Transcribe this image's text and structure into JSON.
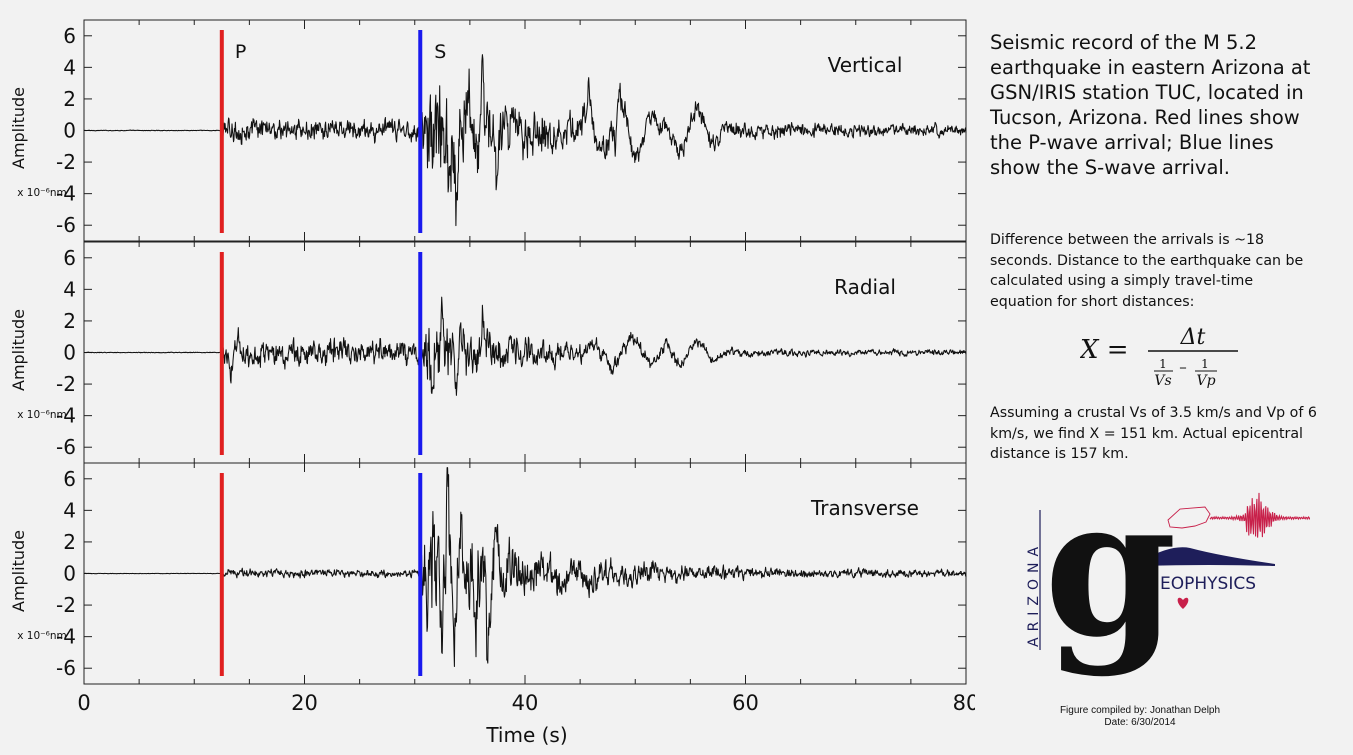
{
  "chart_data": {
    "type": "line",
    "xlabel": "Time (s)",
    "xlim": [
      0,
      80
    ],
    "x_ticks": [
      0,
      20,
      40,
      60,
      80
    ],
    "x_tick_labels": [
      "0",
      "20",
      "40",
      "60",
      "80"
    ],
    "ylabel": "Amplitude",
    "y_unit_label": "x 10⁻⁶nm",
    "ylim": [
      -7,
      7
    ],
    "y_ticks": [
      6,
      4,
      2,
      0,
      -2,
      -4,
      -6
    ],
    "y_tick_labels": [
      "6",
      "4",
      "2",
      "0",
      "-2",
      "-4",
      "-6"
    ],
    "p_arrival_s": 12.5,
    "s_arrival_s": 30.5,
    "p_label": "P",
    "s_label": "S",
    "colors": {
      "p_line": "#e02020",
      "s_line": "#1a1aee",
      "trace": "#111111"
    },
    "panels": [
      {
        "name": "Vertical",
        "pre_p_amp": 0.05,
        "p_coda_amp": 0.5,
        "s_peak_amp": 2.6,
        "late_amp": 0.25,
        "peaks": [
          {
            "t": 33.8,
            "v": -4.9
          },
          {
            "t": 34.9,
            "v": 4.6
          },
          {
            "t": 33.2,
            "v": -4.3
          },
          {
            "t": 36.1,
            "v": 3.1
          },
          {
            "t": 37.5,
            "v": -3.0
          },
          {
            "t": 45.8,
            "v": 3.0
          },
          {
            "t": 48.2,
            "v": -2.0
          }
        ],
        "swells": [
          {
            "t": 48.0,
            "a": 1.5,
            "p": 3.5
          },
          {
            "t": 55.0,
            "a": 1.4,
            "p": 3.2
          },
          {
            "t": 50.8,
            "a": 1.0,
            "p": 3.0
          }
        ]
      },
      {
        "name": "Radial",
        "pre_p_amp": 0.05,
        "p_coda_amp": 0.6,
        "s_peak_amp": 1.6,
        "late_amp": 0.12,
        "peaks": [
          {
            "t": 33.8,
            "v": -3.4
          },
          {
            "t": 32.5,
            "v": 3.0
          },
          {
            "t": 31.6,
            "v": -2.2
          },
          {
            "t": 36.2,
            "v": 2.0
          },
          {
            "t": 14.0,
            "v": 1.3
          },
          {
            "t": 13.3,
            "v": -1.6
          }
        ],
        "swells": [
          {
            "t": 49.0,
            "a": 0.9,
            "p": 3.8
          },
          {
            "t": 55.0,
            "a": 0.7,
            "p": 3.2
          }
        ]
      },
      {
        "name": "Transverse",
        "pre_p_amp": 0.03,
        "p_coda_amp": 0.18,
        "s_peak_amp": 2.8,
        "late_amp": 0.15,
        "peaks": [
          {
            "t": 33.0,
            "v": 6.8
          },
          {
            "t": 32.4,
            "v": -6.6
          },
          {
            "t": 34.2,
            "v": 4.1
          },
          {
            "t": 33.6,
            "v": -5.2
          },
          {
            "t": 35.5,
            "v": -4.6
          },
          {
            "t": 36.6,
            "v": -5.3
          },
          {
            "t": 37.4,
            "v": 3.0
          }
        ],
        "swells": [
          {
            "t": 44.0,
            "a": 0.7,
            "p": 3.0
          }
        ]
      }
    ]
  },
  "caption": {
    "title": "Seismic record of the M 5.2 earthquake in eastern Arizona at GSN/IRIS station TUC, located in Tucson, Arizona. Red lines show the P-wave arrival; Blue lines show the S-wave arrival.",
    "para1": "Difference between the arrivals is ~18 seconds. Distance to the earthquake can be calculated using a simply travel-time equation for short distances:",
    "para2": "Assuming a crustal Vs of 3.5 km/s and Vp of 6 km/s, we find X = 151 km. Actual epicentral distance is 157 km."
  },
  "equation": {
    "lhs": "X =",
    "numerator": "Δt",
    "one_a": "1",
    "vs": "Vs",
    "minus": "–",
    "one_b": "1",
    "vp": "Vp"
  },
  "logo": {
    "vertical_text": "ARIZONA",
    "letter": "g",
    "word": "EOPHYSICS",
    "colors": {
      "main": "#111111",
      "accent": "#c8204a",
      "navy": "#1e1e5a"
    }
  },
  "credits": {
    "compiled": "Figure compiled by: Jonathan Delph",
    "date": "Date: 6/30/2014"
  }
}
